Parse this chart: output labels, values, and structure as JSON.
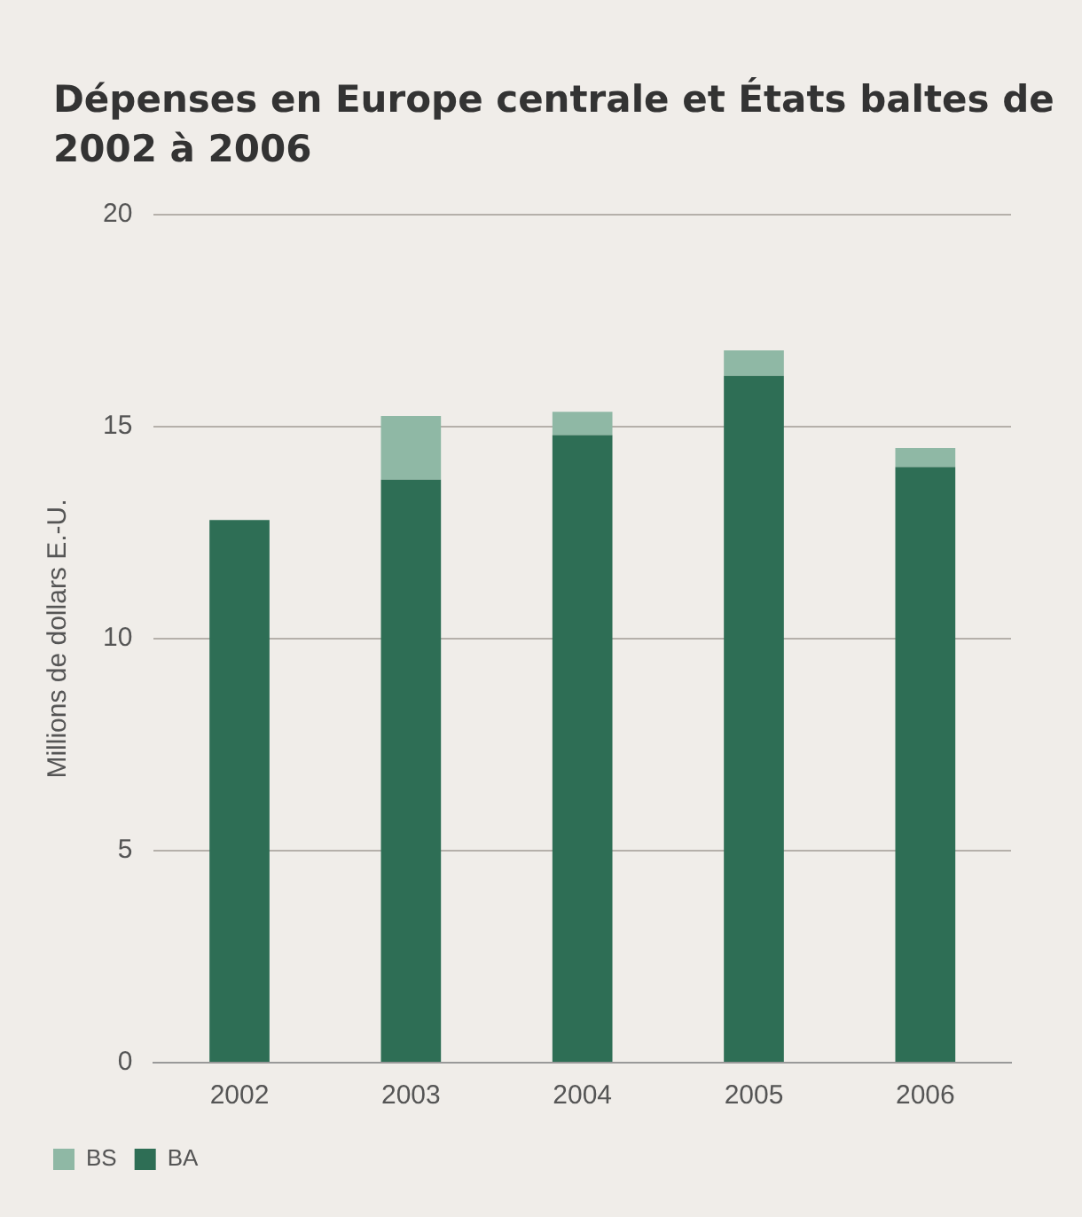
{
  "chart_data": {
    "type": "bar",
    "title": "Dépenses en Europe centrale et États baltes de 2002 à 2006",
    "ylabel": "Millions de dollars E.-U.",
    "categories": [
      "2002",
      "2003",
      "2004",
      "2005",
      "2006"
    ],
    "series": [
      {
        "name": "BA",
        "color": "#2e6e55",
        "values": [
          12.8,
          13.75,
          14.8,
          16.2,
          14.05
        ]
      },
      {
        "name": "BS",
        "color": "#8fb8a5",
        "values": [
          0,
          1.5,
          0.55,
          0.6,
          0.45
        ]
      }
    ],
    "stacked": true,
    "ylim": [
      0,
      20
    ],
    "yticks": [
      0,
      5,
      10,
      15,
      20
    ],
    "grid": "y",
    "legend": "bottom left"
  }
}
